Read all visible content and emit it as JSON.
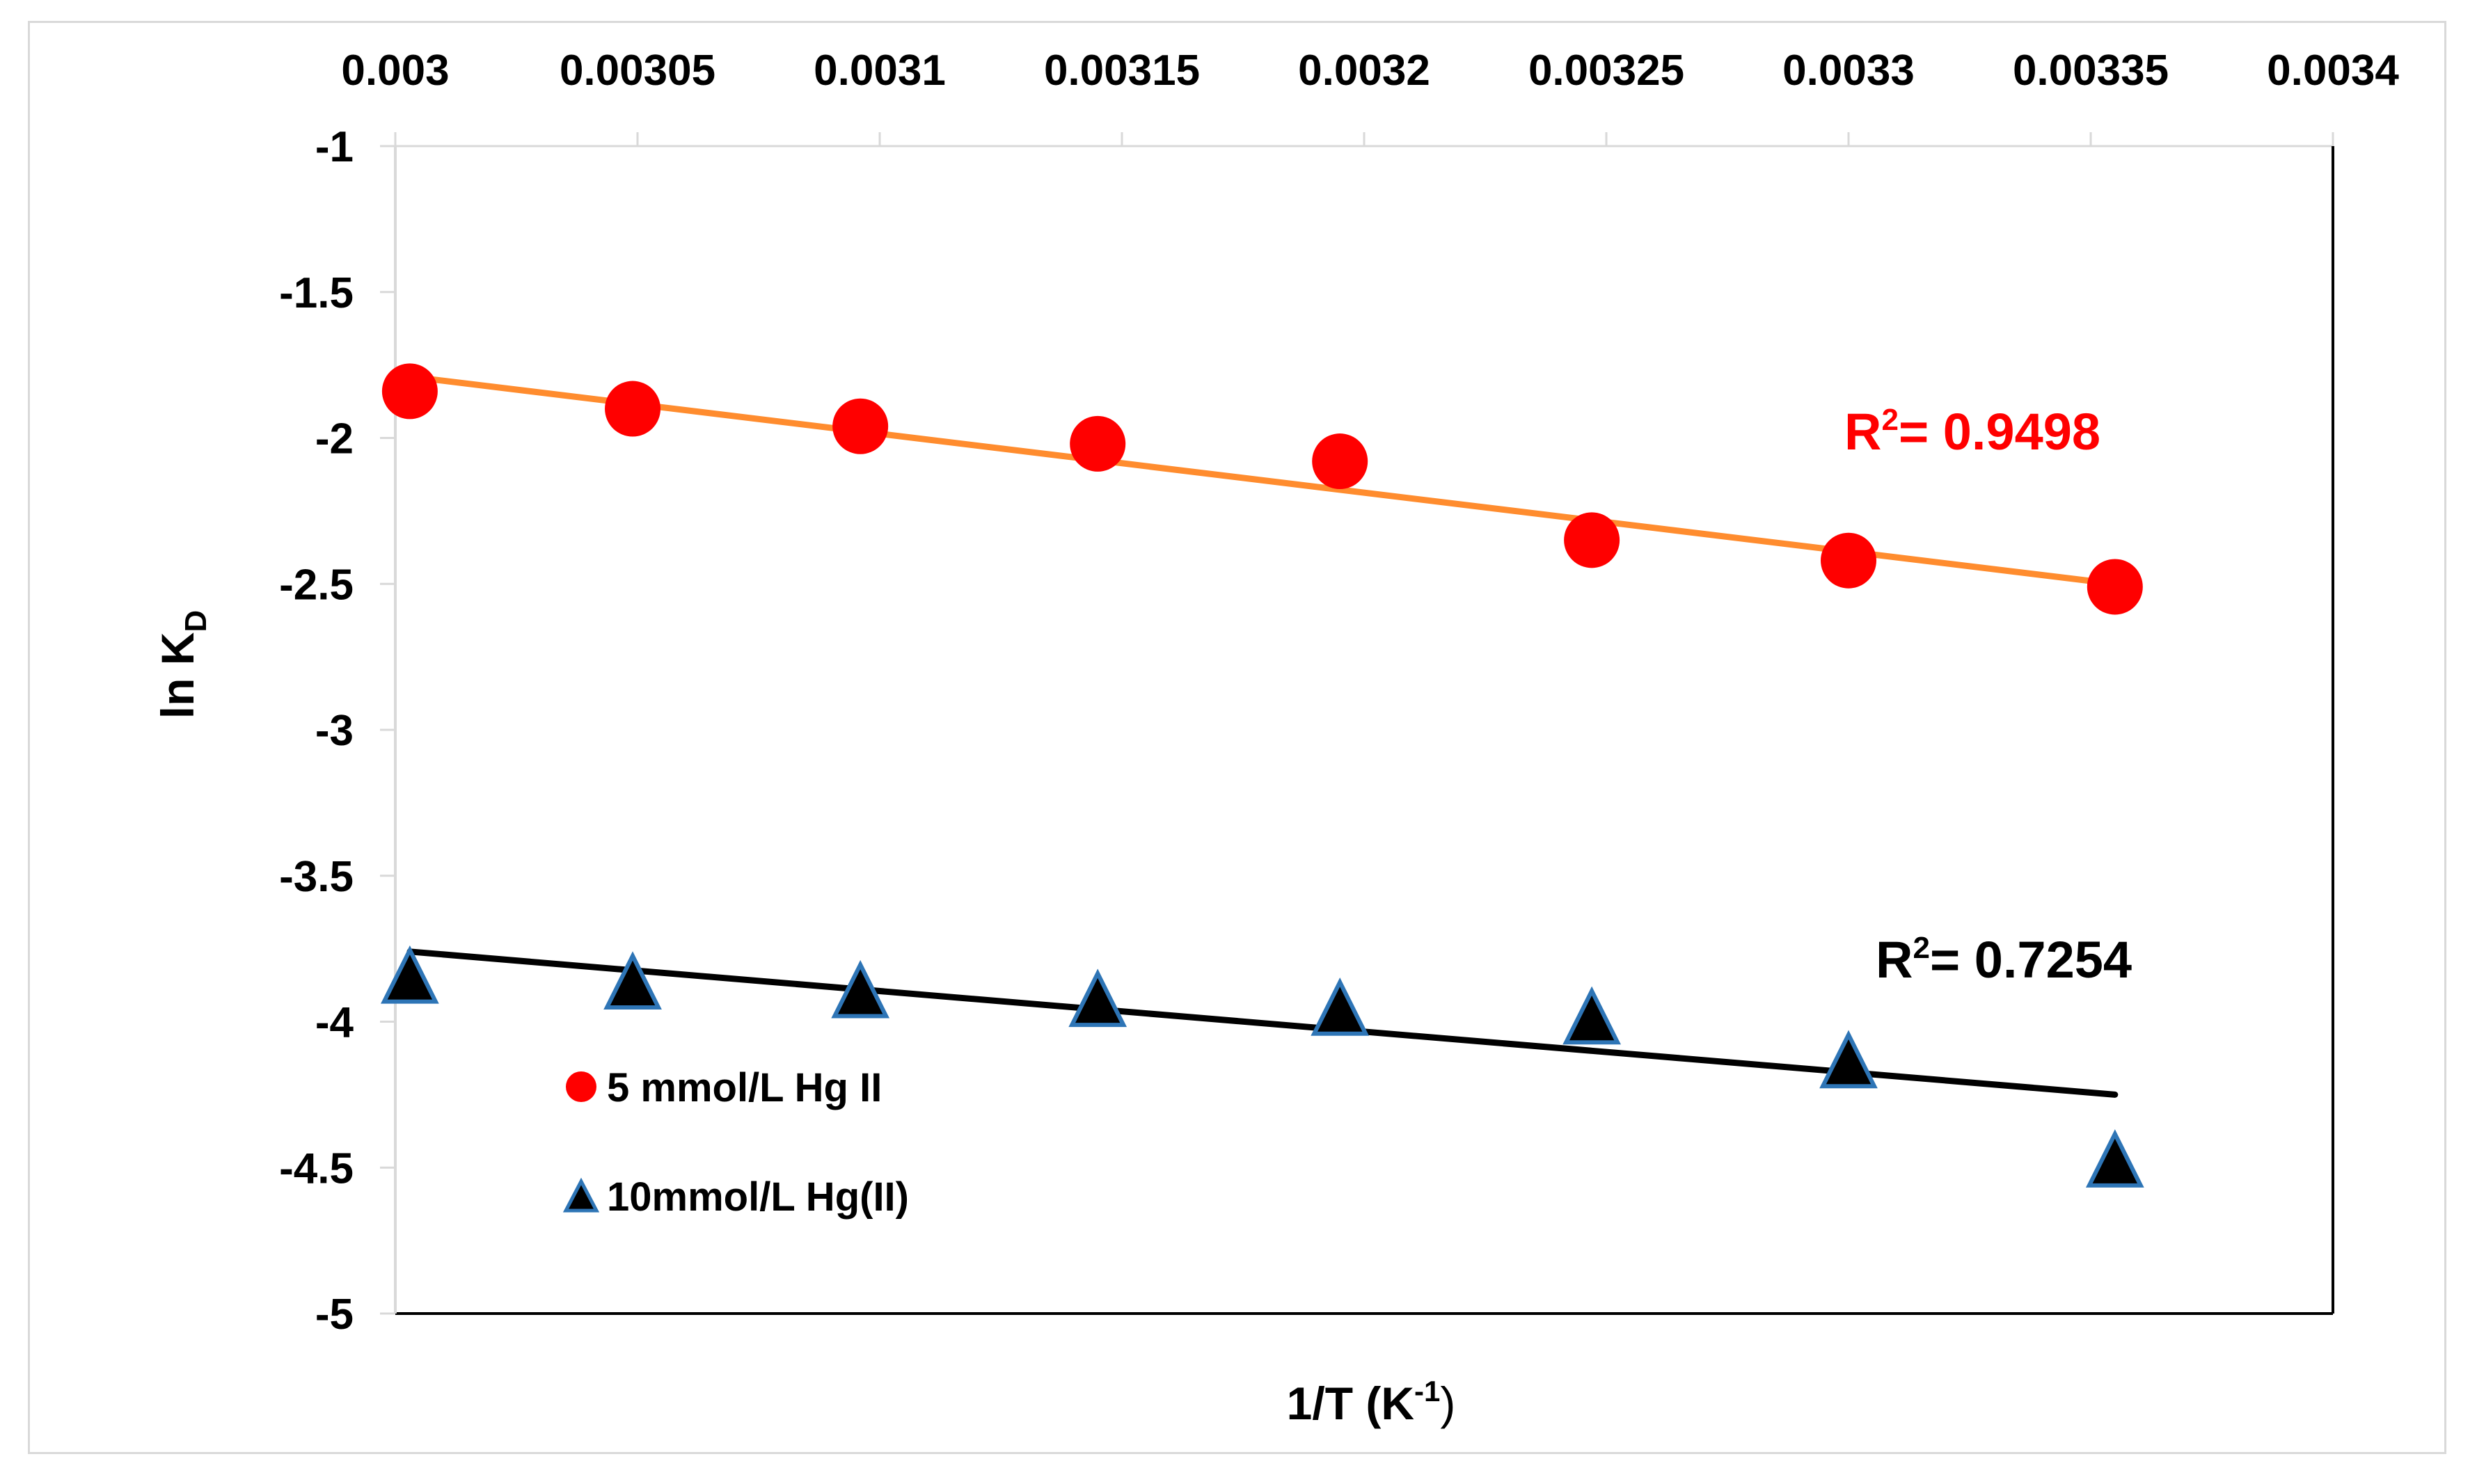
{
  "chart_data": {
    "type": "scatter",
    "title": "",
    "xlabel": {
      "main": "1/T (K",
      "sup": "-1",
      "close": ")"
    },
    "ylabel": {
      "main": "ln K",
      "sub": "D"
    },
    "xlim": [
      0.003,
      0.0034
    ],
    "ylim": [
      -5,
      -1
    ],
    "x_ticks": [
      "0.003",
      "0.00305",
      "0.0031",
      "0.00315",
      "0.0032",
      "0.00325",
      "0.0033",
      "0.00335",
      "0.0034"
    ],
    "y_ticks": [
      "-1",
      "-1.5",
      "-2",
      "-2.5",
      "-3",
      "-3.5",
      "-4",
      "-4.5",
      "-5"
    ],
    "x_axis_position": "top",
    "grid": false,
    "legend_position": "lower-left",
    "series": [
      {
        "name": "5 mmol/L Hg II",
        "marker": "circle",
        "color": "#ff0000",
        "trend_color": "#ff8c2e",
        "x": [
          0.003003,
          0.003049,
          0.003096,
          0.003145,
          0.003195,
          0.003247,
          0.0033,
          0.003355
        ],
        "y": [
          -1.84,
          -1.9,
          -1.96,
          -2.02,
          -2.08,
          -2.35,
          -2.42,
          -2.51
        ],
        "trendline": {
          "x": [
            0.003003,
            0.003355
          ],
          "y": [
            -1.79,
            -2.5
          ]
        },
        "r2_label": {
          "prefix": "R",
          "sup": "2",
          "value": "= 0.9498"
        }
      },
      {
        "name": "10mmol/L Hg(II)",
        "marker": "triangle",
        "color": "#000000",
        "edge_color": "#2e75b6",
        "trend_color": "#000000",
        "x": [
          0.003003,
          0.003049,
          0.003096,
          0.003145,
          0.003195,
          0.003247,
          0.0033,
          0.003355
        ],
        "y": [
          -3.85,
          -3.87,
          -3.9,
          -3.93,
          -3.96,
          -3.99,
          -4.14,
          -4.48
        ],
        "trendline": {
          "x": [
            0.003003,
            0.003355
          ],
          "y": [
            -3.76,
            -4.25
          ]
        },
        "r2_label": {
          "prefix": "R",
          "sup": "2",
          "value": "= 0.7254"
        }
      }
    ]
  }
}
